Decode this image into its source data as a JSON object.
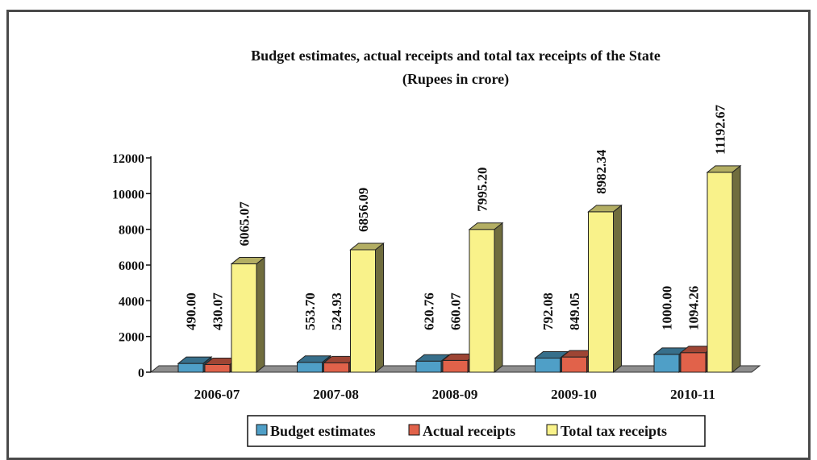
{
  "chart_data": {
    "type": "bar",
    "title": "Budget estimates, actual receipts and total tax receipts of the State",
    "subtitle": "(Rupees in crore)",
    "categories": [
      "2006-07",
      "2007-08",
      "2008-09",
      "2009-10",
      "2010-11"
    ],
    "series": [
      {
        "name": "Budget estimates",
        "color": "#4f9fc7",
        "values": [
          490.0,
          553.7,
          620.76,
          792.08,
          1000.0
        ],
        "labels": [
          "490.00",
          "553.70",
          "620.76",
          "792.08",
          "1000.00"
        ]
      },
      {
        "name": "Actual receipts",
        "color": "#e1624a",
        "values": [
          430.07,
          524.93,
          660.07,
          849.05,
          1094.26
        ],
        "labels": [
          "430.07",
          "524.93",
          "660.07",
          "849.05",
          "1094.26"
        ]
      },
      {
        "name": "Total tax receipts",
        "color": "#f9f28a",
        "values": [
          6065.07,
          6856.09,
          7995.2,
          8982.34,
          11192.67
        ],
        "labels": [
          "6065.07",
          "6856.09",
          "7995.20",
          "8982.34",
          "11192.67"
        ]
      }
    ],
    "yticks": [
      "0",
      "2000",
      "4000",
      "6000",
      "8000",
      "10000",
      "12000"
    ],
    "ylim": [
      0,
      12000
    ],
    "legend_position": "bottom",
    "grid": false,
    "style": "3d-column"
  }
}
